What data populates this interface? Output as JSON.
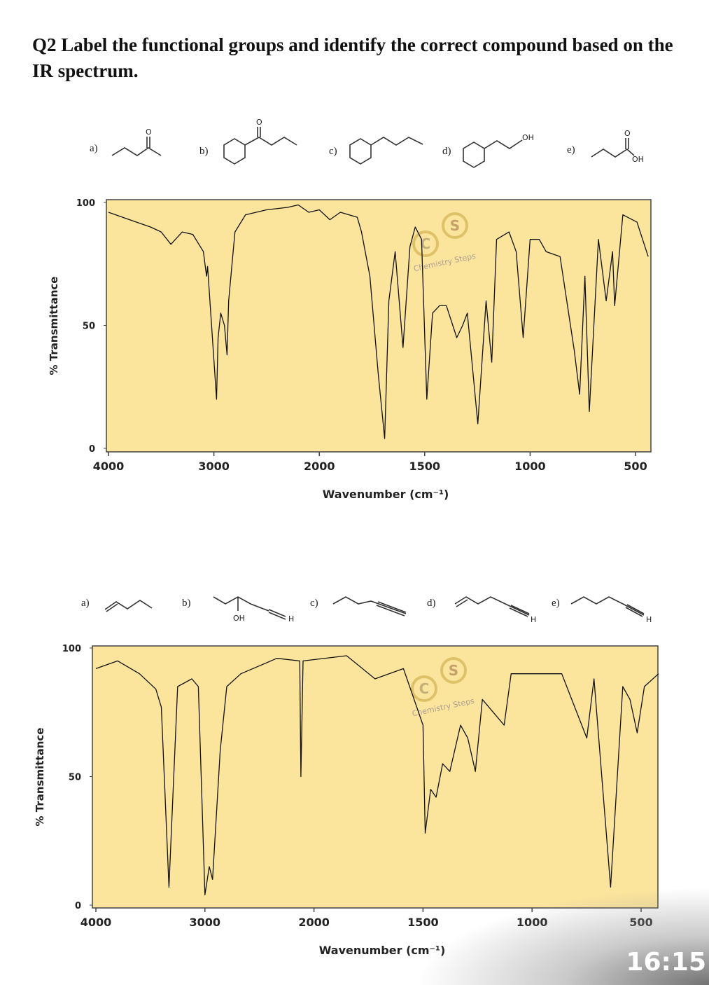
{
  "question": "Q2 Label the functional groups and identify the correct compound based on the IR spectrum.",
  "structures_1": [
    {
      "label": "a)",
      "atoms": [
        "O"
      ]
    },
    {
      "label": "b)",
      "atoms": [
        "O"
      ]
    },
    {
      "label": "c)",
      "atoms": []
    },
    {
      "label": "d)",
      "atoms": [
        "OH"
      ]
    },
    {
      "label": "e)",
      "atoms": [
        "O",
        "OH"
      ]
    }
  ],
  "structures_2": [
    {
      "label": "a)",
      "atoms": []
    },
    {
      "label": "b)",
      "atoms": [
        "OH",
        "H"
      ]
    },
    {
      "label": "c)",
      "atoms": []
    },
    {
      "label": "d)",
      "atoms": [
        "H"
      ]
    },
    {
      "label": "e)",
      "atoms": [
        "H"
      ]
    }
  ],
  "watermark": {
    "letters": [
      "C",
      "S"
    ],
    "text": "Chemistry Steps"
  },
  "chart_data": [
    {
      "type": "line",
      "xlabel": "Wavenumber (cm⁻¹)",
      "ylabel": "% Transmittance",
      "xlim": [
        4020,
        427
      ],
      "xticks": [
        4000,
        3000,
        2000,
        1500,
        1000,
        500
      ],
      "ylim": [
        0,
        100
      ],
      "yticks": [
        0,
        50,
        100
      ],
      "color": "#111111",
      "background": "#fbe49c",
      "x": [
        4000,
        3800,
        3600,
        3500,
        3408,
        3300,
        3200,
        3100,
        3070,
        3060,
        3030,
        2975,
        2960,
        2935,
        2900,
        2875,
        2860,
        2800,
        2700,
        2500,
        2300,
        2200,
        2100,
        2000,
        1950,
        1900,
        1820,
        1800,
        1760,
        1720,
        1690,
        1670,
        1640,
        1603,
        1570,
        1545,
        1515,
        1490,
        1463,
        1430,
        1397,
        1348,
        1320,
        1298,
        1248,
        1209,
        1182,
        1159,
        1100,
        1066,
        1033,
        1000,
        957,
        924,
        858,
        791,
        765,
        740,
        719,
        676,
        639,
        609,
        599,
        560,
        493,
        440
      ],
      "values": [
        96,
        93,
        90,
        88,
        83,
        88,
        87,
        80,
        70,
        74,
        55,
        20,
        45,
        55,
        50,
        38,
        60,
        88,
        95,
        97,
        98,
        99,
        96,
        97,
        93,
        96,
        94,
        88,
        70,
        30,
        4,
        60,
        80,
        41,
        82,
        90,
        85,
        20,
        55,
        58,
        58,
        45,
        50,
        55,
        10,
        60,
        35,
        85,
        88,
        80,
        45,
        85,
        85,
        80,
        78,
        40,
        22,
        70,
        15,
        85,
        60,
        80,
        58,
        95,
        92,
        78
      ]
    },
    {
      "type": "line",
      "xlabel": "Wavenumber (cm⁻¹)",
      "ylabel": "% Transmittance",
      "xlim": [
        4032,
        423
      ],
      "xticks": [
        4000,
        3000,
        2000,
        1500,
        1000,
        500
      ],
      "ylim": [
        0,
        100
      ],
      "yticks": [
        0,
        50,
        100
      ],
      "color": "#111111",
      "background": "#fbe49c",
      "x": [
        4000,
        3800,
        3600,
        3450,
        3400,
        3330,
        3250,
        3120,
        3060,
        3000,
        2960,
        2930,
        2860,
        2800,
        2670,
        2340,
        2130,
        2120,
        2100,
        1850,
        1720,
        1590,
        1500,
        1490,
        1465,
        1440,
        1410,
        1377,
        1328,
        1295,
        1260,
        1228,
        1128,
        1096,
        997,
        864,
        832,
        749,
        716,
        640,
        584,
        551,
        518,
        485,
        420
      ],
      "values": [
        92,
        95,
        90,
        84,
        77,
        7,
        85,
        88,
        85,
        4,
        15,
        10,
        60,
        85,
        90,
        96,
        95,
        50,
        95,
        97,
        88,
        92,
        70,
        28,
        45,
        42,
        55,
        52,
        70,
        65,
        52,
        80,
        70,
        90,
        90,
        90,
        83,
        65,
        88,
        7,
        85,
        80,
        67,
        85,
        90
      ]
    }
  ],
  "clock": "16:15"
}
